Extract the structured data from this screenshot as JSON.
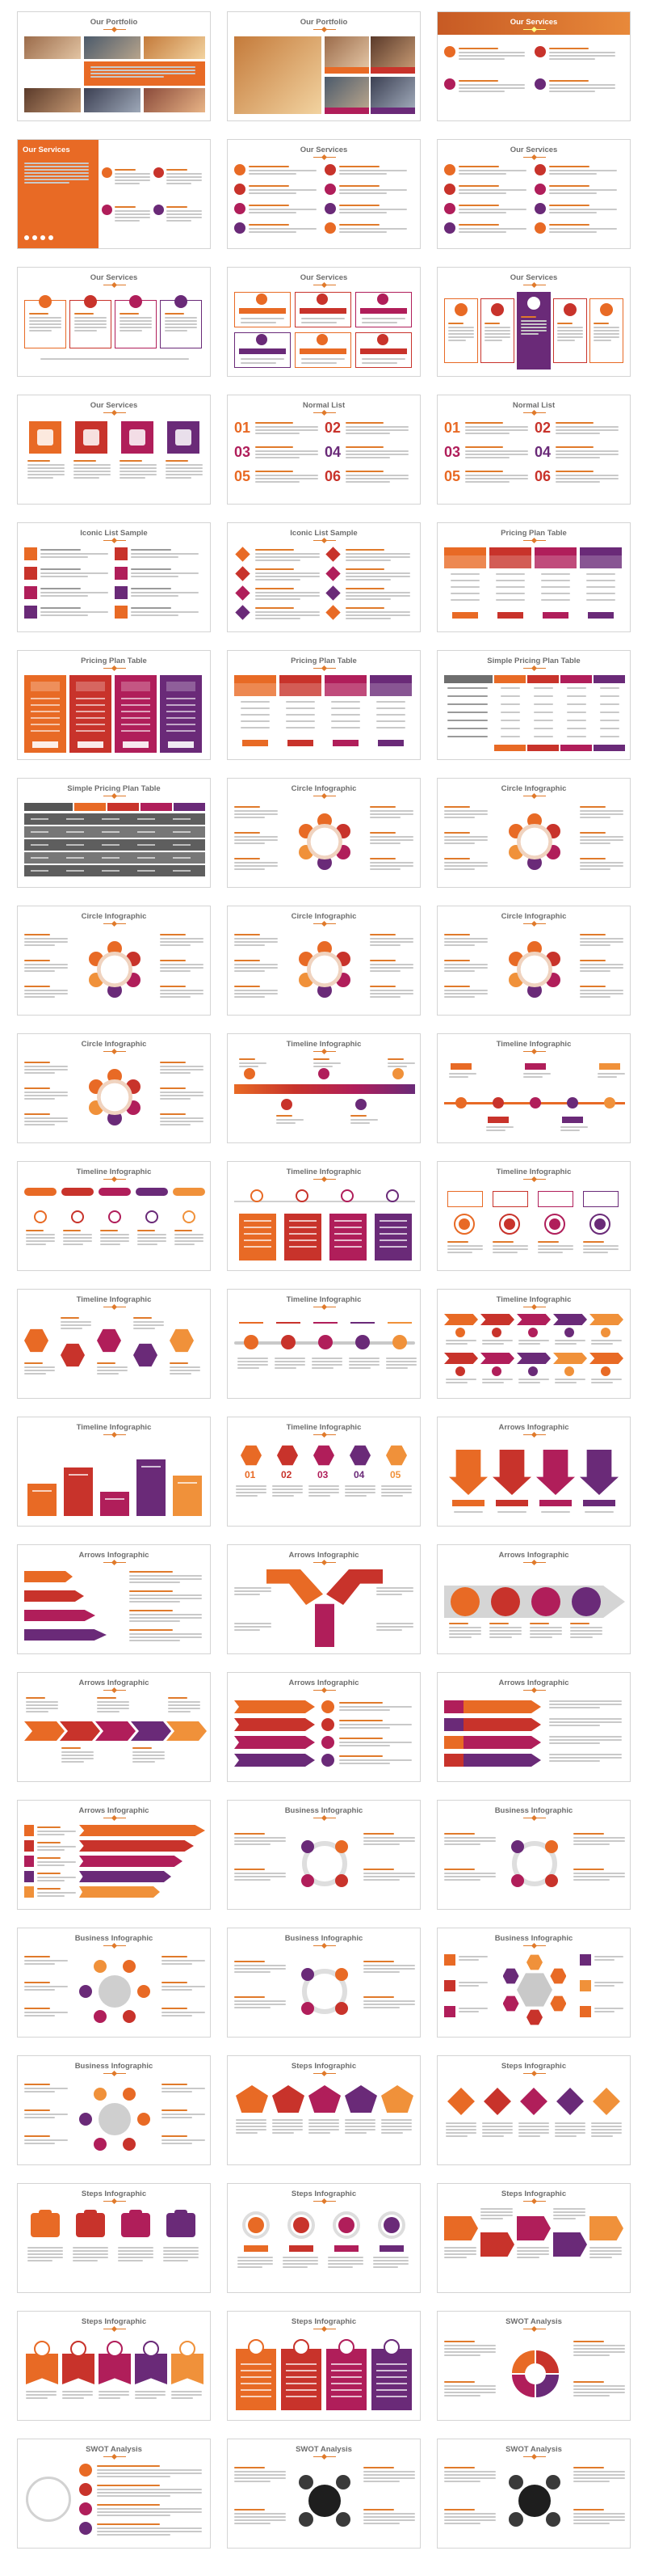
{
  "palette": {
    "orange": "#e86a25",
    "orange_light": "#f0913a",
    "red": "#c8332b",
    "magenta": "#b01e5a",
    "purple": "#6a2a78",
    "gray_text": "#6e6e6e",
    "light_gray": "#c9c9c9"
  },
  "slides": [
    {
      "title": "Our Portfolio",
      "layout": "portfolio-a"
    },
    {
      "title": "Our Portfolio",
      "layout": "portfolio-b"
    },
    {
      "title": "Our Services",
      "layout": "services-banner"
    },
    {
      "title": "Our Services",
      "layout": "services-sidebar"
    },
    {
      "title": "Our Services",
      "layout": "icon-list-2col"
    },
    {
      "title": "Our Services",
      "layout": "icon-list-2col"
    },
    {
      "title": "Our Services",
      "layout": "boxes-outline"
    },
    {
      "title": "Our Services",
      "layout": "boxes-colored"
    },
    {
      "title": "Our Services",
      "layout": "boxes-photo"
    },
    {
      "title": "Our Services",
      "layout": "squares-row"
    },
    {
      "title": "Normal List",
      "layout": "numbered-list"
    },
    {
      "title": "Normal List",
      "layout": "numbered-list"
    },
    {
      "title": "Iconic List Sample",
      "layout": "iconic-list"
    },
    {
      "title": "Iconic List Sample",
      "layout": "iconic-diamonds"
    },
    {
      "title": "Pricing Plan Table",
      "layout": "pricing"
    },
    {
      "title": "Pricing Plan Table",
      "layout": "pricing-dark"
    },
    {
      "title": "Pricing Plan Table",
      "layout": "pricing"
    },
    {
      "title": "Simple Pricing Plan Table",
      "layout": "simple-pricing"
    },
    {
      "title": "Simple Pricing Plan Table",
      "layout": "simple-pricing-dark"
    },
    {
      "title": "Circle Infographic",
      "layout": "circle"
    },
    {
      "title": "Circle Infographic",
      "layout": "circle"
    },
    {
      "title": "Circle Infographic",
      "layout": "circle"
    },
    {
      "title": "Circle Infographic",
      "layout": "circle"
    },
    {
      "title": "Circle Infographic",
      "layout": "circle"
    },
    {
      "title": "Circle Infographic",
      "layout": "circle"
    },
    {
      "title": "Timeline Infographic",
      "layout": "timeline-ribbon"
    },
    {
      "title": "Timeline Infographic",
      "layout": "timeline-years"
    },
    {
      "title": "Timeline Infographic",
      "layout": "timeline-pills"
    },
    {
      "title": "Timeline Infographic",
      "layout": "timeline-cards"
    },
    {
      "title": "Timeline Infographic",
      "layout": "timeline-circles"
    },
    {
      "title": "Timeline Infographic",
      "layout": "timeline-hex"
    },
    {
      "title": "Timeline Infographic",
      "layout": "timeline-line"
    },
    {
      "title": "Timeline Infographic",
      "layout": "timeline-arrows"
    },
    {
      "title": "Timeline Infographic",
      "layout": "timeline-blocks"
    },
    {
      "title": "Timeline Infographic",
      "layout": "timeline-hex-num"
    },
    {
      "title": "Arrows Infographic",
      "layout": "arrows-down"
    },
    {
      "title": "Arrows Infographic",
      "layout": "arrows-right"
    },
    {
      "title": "Arrows Infographic",
      "layout": "arrows-split"
    },
    {
      "title": "Arrows Infographic",
      "layout": "arrows-circles"
    },
    {
      "title": "Arrows Infographic",
      "layout": "arrows-chevron"
    },
    {
      "title": "Arrows Infographic",
      "layout": "arrows-stack"
    },
    {
      "title": "Arrows Infographic",
      "layout": "arrows-ribbons"
    },
    {
      "title": "Arrows Infographic",
      "layout": "arrows-bars"
    },
    {
      "title": "Business Infographic",
      "layout": "business-ring"
    },
    {
      "title": "Business Infographic",
      "layout": "business-ring"
    },
    {
      "title": "Business Infographic",
      "layout": "business-radial"
    },
    {
      "title": "Business Infographic",
      "layout": "business-ring"
    },
    {
      "title": "Business Infographic",
      "layout": "business-hex"
    },
    {
      "title": "Business Infographic",
      "layout": "business-radial"
    },
    {
      "title": "Steps Infographic",
      "layout": "steps-shapes"
    },
    {
      "title": "Steps Infographic",
      "layout": "steps-diamonds"
    },
    {
      "title": "Steps Infographic",
      "layout": "steps-boxes"
    },
    {
      "title": "Steps Infographic",
      "layout": "steps-circles"
    },
    {
      "title": "Steps Infographic",
      "layout": "steps-pentagons"
    },
    {
      "title": "Steps Infographic",
      "layout": "steps-flags"
    },
    {
      "title": "Steps Infographic",
      "layout": "steps-cards"
    },
    {
      "title": "SWOT Analysis",
      "layout": "swot-circle"
    },
    {
      "title": "SWOT Analysis",
      "layout": "swot-list"
    },
    {
      "title": "SWOT Analysis",
      "layout": "swot-center"
    },
    {
      "title": "SWOT Analysis",
      "layout": "swot-center"
    }
  ]
}
